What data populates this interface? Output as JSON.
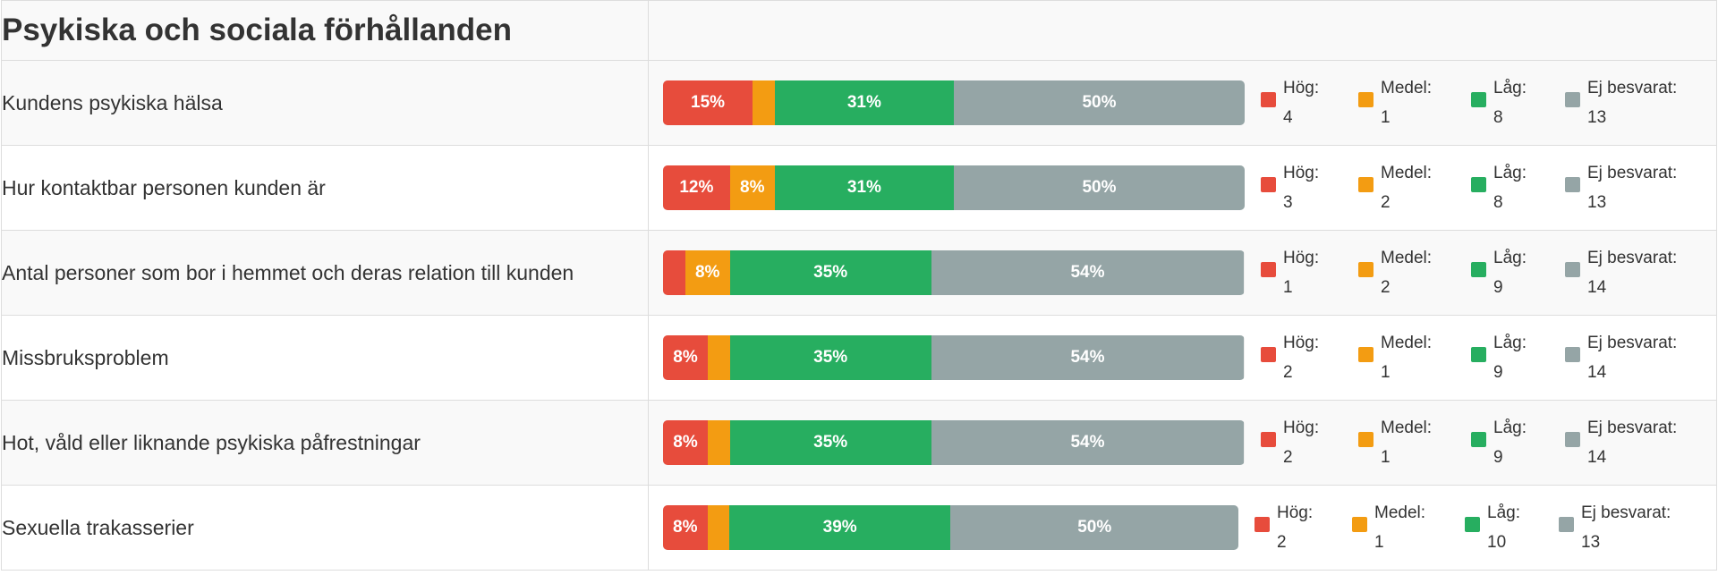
{
  "section_title": "Psykiska och sociala förhållanden",
  "colors": {
    "hog": "#e74c3c",
    "medel": "#f39c12",
    "lag": "#27ae60",
    "ej_besvarat": "#95a5a6"
  },
  "legend_labels": {
    "hog": "Hög:",
    "medel": "Medel:",
    "lag": "Låg:",
    "ej_besvarat": "Ej besvarat:"
  },
  "rows": [
    {
      "label": "Kundens psykiska hälsa",
      "bar": [
        {
          "key": "hog",
          "percent": 15.4,
          "text": "15%"
        },
        {
          "key": "medel",
          "percent": 3.8,
          "text": ""
        },
        {
          "key": "lag",
          "percent": 30.8,
          "text": "31%"
        },
        {
          "key": "ej_besvarat",
          "percent": 50.0,
          "text": "50%"
        }
      ],
      "counts": {
        "hog": "4",
        "medel": "1",
        "lag": "8",
        "ej_besvarat": "13"
      }
    },
    {
      "label": "Hur kontaktbar personen kunden är",
      "bar": [
        {
          "key": "hog",
          "percent": 11.5,
          "text": "12%"
        },
        {
          "key": "medel",
          "percent": 7.7,
          "text": "8%"
        },
        {
          "key": "lag",
          "percent": 30.8,
          "text": "31%"
        },
        {
          "key": "ej_besvarat",
          "percent": 50.0,
          "text": "50%"
        }
      ],
      "counts": {
        "hog": "3",
        "medel": "2",
        "lag": "8",
        "ej_besvarat": "13"
      }
    },
    {
      "label": "Antal personer som bor i hemmet och deras relation till kunden",
      "bar": [
        {
          "key": "hog",
          "percent": 3.8,
          "text": ""
        },
        {
          "key": "medel",
          "percent": 7.7,
          "text": "8%"
        },
        {
          "key": "lag",
          "percent": 34.6,
          "text": "35%"
        },
        {
          "key": "ej_besvarat",
          "percent": 53.8,
          "text": "54%"
        }
      ],
      "counts": {
        "hog": "1",
        "medel": "2",
        "lag": "9",
        "ej_besvarat": "14"
      }
    },
    {
      "label": "Missbruksproblem",
      "bar": [
        {
          "key": "hog",
          "percent": 7.7,
          "text": "8%"
        },
        {
          "key": "medel",
          "percent": 3.8,
          "text": ""
        },
        {
          "key": "lag",
          "percent": 34.6,
          "text": "35%"
        },
        {
          "key": "ej_besvarat",
          "percent": 53.8,
          "text": "54%"
        }
      ],
      "counts": {
        "hog": "2",
        "medel": "1",
        "lag": "9",
        "ej_besvarat": "14"
      }
    },
    {
      "label": "Hot, våld eller liknande psykiska påfrestningar",
      "bar": [
        {
          "key": "hog",
          "percent": 7.7,
          "text": "8%"
        },
        {
          "key": "medel",
          "percent": 3.8,
          "text": ""
        },
        {
          "key": "lag",
          "percent": 34.6,
          "text": "35%"
        },
        {
          "key": "ej_besvarat",
          "percent": 53.8,
          "text": "54%"
        }
      ],
      "counts": {
        "hog": "2",
        "medel": "1",
        "lag": "9",
        "ej_besvarat": "14"
      }
    },
    {
      "label": "Sexuella trakasserier",
      "bar": [
        {
          "key": "hog",
          "percent": 7.7,
          "text": "8%"
        },
        {
          "key": "medel",
          "percent": 3.8,
          "text": ""
        },
        {
          "key": "lag",
          "percent": 38.5,
          "text": "39%"
        },
        {
          "key": "ej_besvarat",
          "percent": 50.0,
          "text": "50%"
        }
      ],
      "counts": {
        "hog": "2",
        "medel": "1",
        "lag": "10",
        "ej_besvarat": "13"
      }
    }
  ]
}
